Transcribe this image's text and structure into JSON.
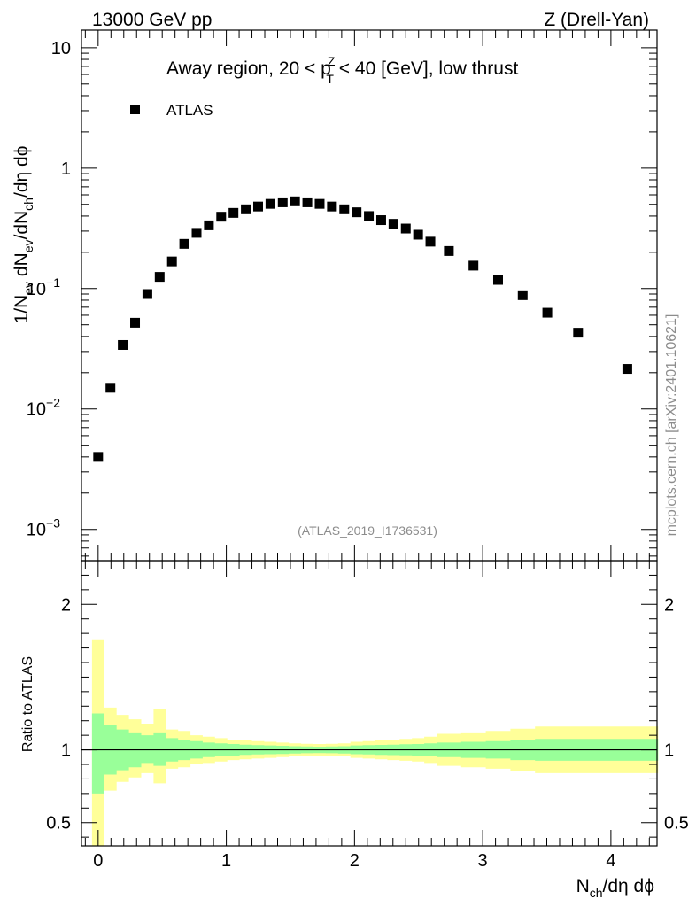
{
  "header": {
    "left": "13000 GeV pp",
    "right": "Z (Drell-Yan)"
  },
  "main_title": {
    "prefix": "Away region, 20 < p",
    "sup": "Z",
    "sub": "T",
    "suffix": " < 40 [GeV], low thrust"
  },
  "side_label": "mcplots.cern.ch [arXiv:2401.10621]",
  "analysis_id": "(ATLAS_2019_I1736531)",
  "colors": {
    "band_inner": "#99ff99",
    "band_outer": "#ffff99",
    "marker": "#000000"
  },
  "chart_data": [
    {
      "type": "scatter",
      "yscale": "log",
      "title": "Away region, 20 < pT^Z < 40 [GeV], low thrust",
      "ylabel": {
        "p1": "1/N",
        "s1": "ev",
        "p2": " dN",
        "s2": "ev",
        "p3": "/dN",
        "s3": "ch",
        "p4": "/dη dϕ"
      },
      "xlim": [
        -0.13,
        4.36
      ],
      "ylim": [
        0.00055,
        14
      ],
      "yticks": [
        {
          "value": 10,
          "label": "10",
          "exp": ""
        },
        {
          "value": 1,
          "label": "1",
          "exp": ""
        },
        {
          "value": 0.1,
          "label": "10",
          "exp": "−1"
        },
        {
          "value": 0.01,
          "label": "10",
          "exp": "−2"
        },
        {
          "value": 0.001,
          "label": "10",
          "exp": "−3"
        }
      ],
      "legend": {
        "label": "ATLAS",
        "position": "top-left"
      },
      "series": [
        {
          "name": "ATLAS",
          "x": [
            0.0,
            0.096,
            0.192,
            0.288,
            0.384,
            0.48,
            0.576,
            0.672,
            0.768,
            0.864,
            0.96,
            1.056,
            1.152,
            1.248,
            1.344,
            1.44,
            1.536,
            1.632,
            1.728,
            1.824,
            1.92,
            2.016,
            2.112,
            2.208,
            2.304,
            2.4,
            2.496,
            2.592,
            2.736,
            2.928,
            3.12,
            3.312,
            3.504,
            3.744,
            4.128
          ],
          "y": [
            0.004,
            0.015,
            0.034,
            0.052,
            0.09,
            0.125,
            0.168,
            0.235,
            0.29,
            0.335,
            0.395,
            0.425,
            0.455,
            0.48,
            0.505,
            0.52,
            0.53,
            0.52,
            0.505,
            0.48,
            0.455,
            0.43,
            0.4,
            0.37,
            0.345,
            0.315,
            0.28,
            0.245,
            0.205,
            0.155,
            0.118,
            0.088,
            0.063,
            0.043,
            0.0215
          ]
        }
      ]
    },
    {
      "type": "area",
      "ylabel": "Ratio to ATLAS",
      "xlabel": {
        "p1": "N",
        "s1": "ch",
        "p2": "/dη dϕ"
      },
      "xlim": [
        -0.13,
        4.36
      ],
      "ylim": [
        0.34,
        2.3
      ],
      "xticks": [
        0,
        1,
        2,
        3,
        4
      ],
      "yticks": [
        {
          "value": 2,
          "label": "2"
        },
        {
          "value": 1,
          "label": "1"
        },
        {
          "value": 0.5,
          "label": "0.5"
        }
      ],
      "reference_line": 1,
      "bands": {
        "edges": [
          -0.048,
          0.048,
          0.144,
          0.24,
          0.336,
          0.432,
          0.528,
          0.624,
          0.72,
          0.816,
          0.912,
          1.008,
          1.104,
          1.2,
          1.296,
          1.392,
          1.488,
          1.584,
          1.68,
          1.776,
          1.872,
          1.968,
          2.064,
          2.16,
          2.256,
          2.352,
          2.448,
          2.544,
          2.64,
          2.832,
          3.024,
          3.216,
          3.408,
          3.6,
          3.888,
          4.368
        ],
        "inner_lo": [
          0.7,
          0.83,
          0.86,
          0.88,
          0.91,
          0.89,
          0.92,
          0.93,
          0.94,
          0.95,
          0.955,
          0.96,
          0.965,
          0.968,
          0.97,
          0.972,
          0.975,
          0.977,
          0.978,
          0.977,
          0.975,
          0.97,
          0.968,
          0.966,
          0.964,
          0.962,
          0.96,
          0.955,
          0.95,
          0.945,
          0.94,
          0.93,
          0.925,
          0.925,
          0.925
        ],
        "inner_hi": [
          1.25,
          1.17,
          1.14,
          1.12,
          1.1,
          1.12,
          1.08,
          1.07,
          1.06,
          1.05,
          1.045,
          1.04,
          1.035,
          1.032,
          1.03,
          1.028,
          1.025,
          1.023,
          1.022,
          1.023,
          1.025,
          1.03,
          1.032,
          1.034,
          1.036,
          1.038,
          1.04,
          1.045,
          1.05,
          1.055,
          1.06,
          1.07,
          1.075,
          1.075,
          1.075
        ],
        "outer_lo": [
          0.34,
          0.72,
          0.78,
          0.81,
          0.84,
          0.77,
          0.87,
          0.88,
          0.9,
          0.91,
          0.92,
          0.93,
          0.935,
          0.94,
          0.945,
          0.95,
          0.955,
          0.958,
          0.96,
          0.958,
          0.955,
          0.945,
          0.94,
          0.935,
          0.93,
          0.925,
          0.92,
          0.91,
          0.89,
          0.88,
          0.87,
          0.855,
          0.84,
          0.84,
          0.84
        ],
        "outer_hi": [
          1.76,
          1.29,
          1.24,
          1.21,
          1.18,
          1.28,
          1.14,
          1.13,
          1.1,
          1.09,
          1.08,
          1.07,
          1.065,
          1.06,
          1.055,
          1.05,
          1.045,
          1.042,
          1.04,
          1.042,
          1.045,
          1.055,
          1.06,
          1.065,
          1.07,
          1.075,
          1.08,
          1.09,
          1.11,
          1.12,
          1.13,
          1.145,
          1.16,
          1.16,
          1.16
        ]
      }
    }
  ]
}
